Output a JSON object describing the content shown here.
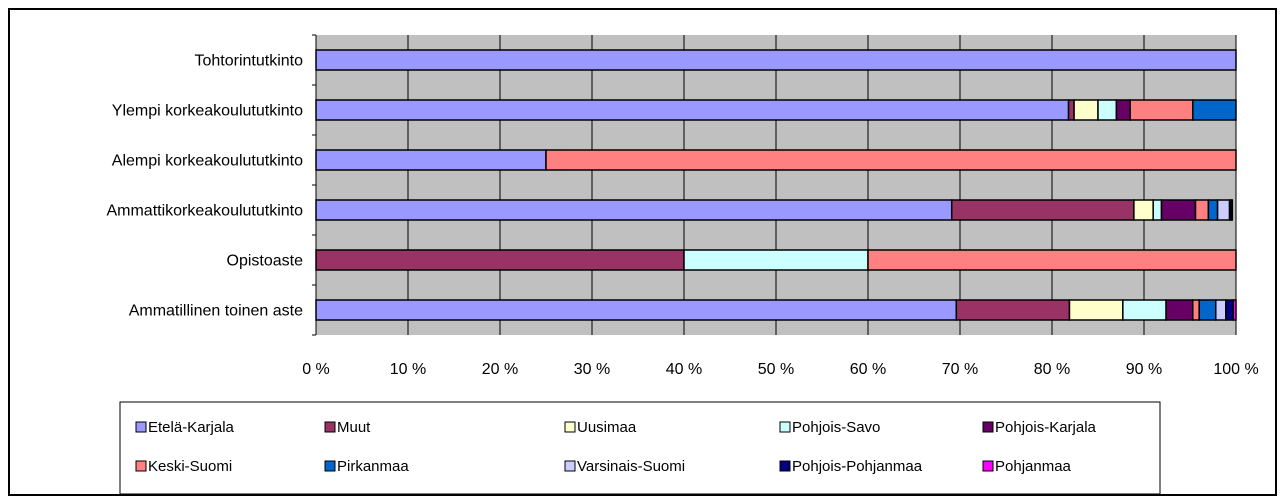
{
  "chart_data": {
    "type": "bar",
    "orientation": "horizontal",
    "stacked": "percent",
    "title": "",
    "xlabel": "",
    "ylabel": "",
    "xlim": [
      0,
      100
    ],
    "x_ticks": [
      "0 %",
      "10 %",
      "20 %",
      "30 %",
      "40 %",
      "50 %",
      "60 %",
      "70 %",
      "80 %",
      "90 %",
      "100 %"
    ],
    "grid": true,
    "legend_position": "bottom",
    "background": "#c0c0c0",
    "categories": [
      "Tohtorintutkinto",
      "Ylempi korkeakoulututkinto",
      "Alempi korkeakoulututkinto",
      "Ammattikorkeakoulututkinto",
      "Opistoaste",
      "Ammatillinen toinen aste"
    ],
    "series": [
      {
        "name": "Etelä-Karjala",
        "color": "#9999ff",
        "values": [
          100,
          81.8,
          25,
          69.1,
          0,
          69.6
        ]
      },
      {
        "name": "Muut",
        "color": "#993366",
        "values": [
          0,
          0.6,
          0,
          19.8,
          40,
          12.3
        ]
      },
      {
        "name": "Uusimaa",
        "color": "#ffffcc",
        "values": [
          0,
          2.6,
          0,
          2.1,
          0,
          5.8
        ]
      },
      {
        "name": "Pohjois-Savo",
        "color": "#ccffff",
        "values": [
          0,
          2.0,
          0,
          0.9,
          20,
          4.7
        ]
      },
      {
        "name": "Pohjois-Karjala",
        "color": "#660066",
        "values": [
          0,
          1.5,
          0,
          3.7,
          0,
          2.9
        ]
      },
      {
        "name": "Keski-Suomi",
        "color": "#ff8080",
        "values": [
          0,
          6.8,
          75,
          1.4,
          40,
          0.7
        ]
      },
      {
        "name": "Pirkanmaa",
        "color": "#0066cc",
        "values": [
          0,
          4.7,
          0,
          1.0,
          0,
          1.8
        ]
      },
      {
        "name": "Varsinais-Suomi",
        "color": "#ccccff",
        "values": [
          0,
          0,
          0,
          1.3,
          0,
          1.1
        ]
      },
      {
        "name": "Pohjois-Pohjanmaa",
        "color": "#000080",
        "values": [
          0,
          0,
          0,
          0.2,
          0,
          0.8
        ]
      },
      {
        "name": "Pohjanmaa",
        "color": "#ff00ff",
        "values": [
          0,
          0,
          0,
          0.1,
          0,
          0.3
        ]
      }
    ]
  }
}
